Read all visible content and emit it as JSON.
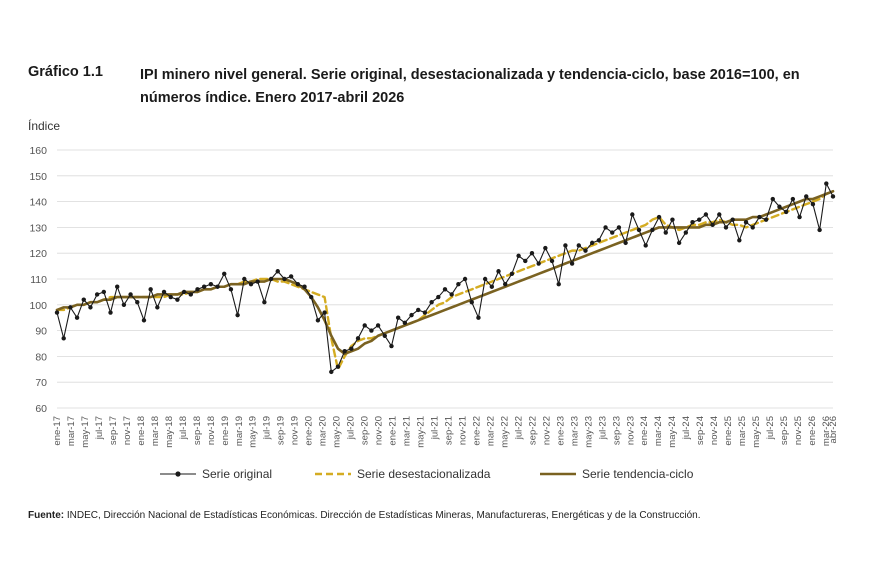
{
  "figure": {
    "number": "Gráfico 1.1",
    "title": "IPI minero nivel general. Serie original, desestacionalizada y tendencia-ciclo, base 2016=100, en números índice. Enero 2017-abril 2026"
  },
  "footer": {
    "source_label": "Fuente:",
    "source_text": "INDEC, Dirección Nacional de Estadísticas Económicas. Dirección de Estadísticas Mineras, Manufactureras, Energéticas y de la Construcción."
  },
  "colors": {
    "original": "#1a1a1a",
    "desestacionalizada": "#d4ac22",
    "tendencia": "#7a6221",
    "grid": "#d9d9d9",
    "axis_text": "#555555"
  },
  "chart_data": {
    "type": "line",
    "ylabel": "Índice",
    "ylim": [
      60,
      160
    ],
    "yticks": [
      60,
      70,
      80,
      90,
      100,
      110,
      120,
      130,
      140,
      150,
      160
    ],
    "grid": true,
    "legend_position": "bottom",
    "x_tick_labels": [
      "ene-17",
      "mar-17",
      "may-17",
      "jul-17",
      "sep-17",
      "nov-17",
      "ene-18",
      "mar-18",
      "may-18",
      "jul-18",
      "sep-18",
      "nov-18",
      "ene-19",
      "mar-19",
      "may-19",
      "jul-19",
      "sep-19",
      "nov-19",
      "ene-20",
      "mar-20",
      "may-20",
      "jul-20",
      "sep-20",
      "nov-20",
      "ene-21",
      "mar-21",
      "may-21",
      "jul-21",
      "sep-21",
      "nov-21",
      "ene-22",
      "mar-22",
      "may-22",
      "jul-22",
      "sep-22",
      "nov-22",
      "ene-23",
      "mar-23",
      "may-23",
      "jul-23",
      "sep-23",
      "nov-23",
      "ene-24",
      "mar-24",
      "may-24",
      "jul-24",
      "sep-24",
      "nov-24",
      "ene-25",
      "mar-25",
      "may-25",
      "jul-25",
      "sep-25",
      "nov-25",
      "ene-26",
      "mar-26",
      "abr-26"
    ],
    "series": [
      {
        "name": "Serie original",
        "style": "line-markers",
        "values": [
          97,
          87,
          99,
          95,
          102,
          99,
          104,
          105,
          97,
          107,
          100,
          104,
          101,
          94,
          106,
          99,
          105,
          103,
          102,
          105,
          104,
          106,
          107,
          108,
          107,
          112,
          106,
          96,
          110,
          108,
          109,
          101,
          110,
          113,
          110,
          111,
          108,
          107,
          103,
          94,
          97,
          74,
          76,
          82,
          83,
          87,
          92,
          90,
          92,
          88,
          84,
          95,
          93,
          96,
          98,
          97,
          101,
          103,
          106,
          104,
          108,
          110,
          101,
          95,
          110,
          107,
          113,
          108,
          112,
          119,
          117,
          120,
          116,
          122,
          117,
          108,
          123,
          116,
          123,
          121,
          124,
          125,
          130,
          128,
          130,
          124,
          135,
          129,
          123,
          129,
          134,
          128,
          133,
          124,
          128,
          132,
          133,
          135,
          131,
          135,
          130,
          133,
          125,
          132,
          130,
          134,
          133,
          141,
          138,
          136,
          141,
          134,
          142,
          139,
          129,
          147,
          142
        ],
        "x_end_index": 111
      },
      {
        "name": "Serie desestacionalizada",
        "style": "dashed",
        "values": [
          98,
          98,
          99,
          100,
          100,
          101,
          101,
          102,
          103,
          103,
          103,
          103,
          103,
          103,
          103,
          103,
          103,
          104,
          104,
          104,
          105,
          105,
          106,
          106,
          107,
          107,
          108,
          108,
          109,
          109,
          110,
          110,
          110,
          109,
          109,
          108,
          107,
          106,
          105,
          104,
          103,
          87,
          75,
          80,
          84,
          86,
          87,
          87,
          88,
          89,
          90,
          91,
          92,
          93,
          94,
          96,
          98,
          100,
          101,
          103,
          104,
          105,
          106,
          107,
          108,
          109,
          110,
          111,
          112,
          113,
          114,
          115,
          116,
          117,
          118,
          119,
          120,
          121,
          121,
          122,
          123,
          124,
          125,
          126,
          127,
          128,
          129,
          130,
          131,
          133,
          134,
          131,
          130,
          129,
          130,
          131,
          131,
          132,
          132,
          133,
          132,
          131,
          131,
          130,
          131,
          132,
          133,
          134,
          135,
          136,
          137,
          138,
          139,
          140,
          141,
          143,
          144
        ],
        "x_end_index": 111
      },
      {
        "name": "Serie tendencia-ciclo",
        "style": "solid",
        "values": [
          98,
          99,
          99,
          100,
          100,
          101,
          101,
          102,
          102,
          103,
          103,
          103,
          103,
          103,
          103,
          104,
          104,
          104,
          104,
          105,
          105,
          105,
          106,
          106,
          107,
          107,
          108,
          108,
          108,
          109,
          109,
          109,
          110,
          110,
          110,
          109,
          108,
          106,
          103,
          99,
          94,
          88,
          83,
          81,
          82,
          83,
          85,
          86,
          88,
          89,
          90,
          91,
          92,
          93,
          94,
          95,
          96,
          97,
          98,
          99,
          100,
          101,
          102,
          103,
          104,
          105,
          106,
          107,
          108,
          109,
          110,
          111,
          112,
          113,
          114,
          115,
          116,
          117,
          118,
          119,
          120,
          121,
          122,
          123,
          124,
          125,
          126,
          127,
          128,
          129,
          130,
          130,
          130,
          130,
          130,
          130,
          130,
          131,
          131,
          132,
          132,
          133,
          133,
          133,
          134,
          134,
          135,
          136,
          137,
          138,
          139,
          140,
          141,
          141,
          142,
          143,
          144
        ],
        "x_end_index": 111
      }
    ]
  }
}
